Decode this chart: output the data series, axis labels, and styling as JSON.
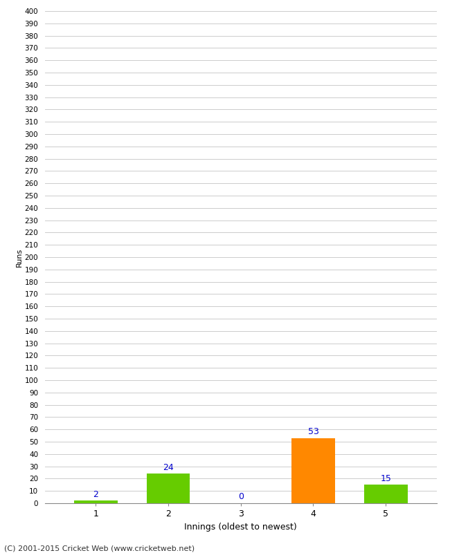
{
  "xlabel": "Innings (oldest to newest)",
  "ylabel": "Runs",
  "categories": [
    1,
    2,
    3,
    4,
    5
  ],
  "values": [
    2,
    24,
    0,
    53,
    15
  ],
  "bar_colors": [
    "#66cc00",
    "#66cc00",
    "#66cc00",
    "#ff8800",
    "#66cc00"
  ],
  "label_color": "#0000cc",
  "ylim": [
    0,
    400
  ],
  "background_color": "#ffffff",
  "grid_color": "#cccccc",
  "footer": "(C) 2001-2015 Cricket Web (www.cricketweb.net)",
  "bar_width": 0.6,
  "figsize": [
    6.5,
    8.0
  ],
  "dpi": 100
}
